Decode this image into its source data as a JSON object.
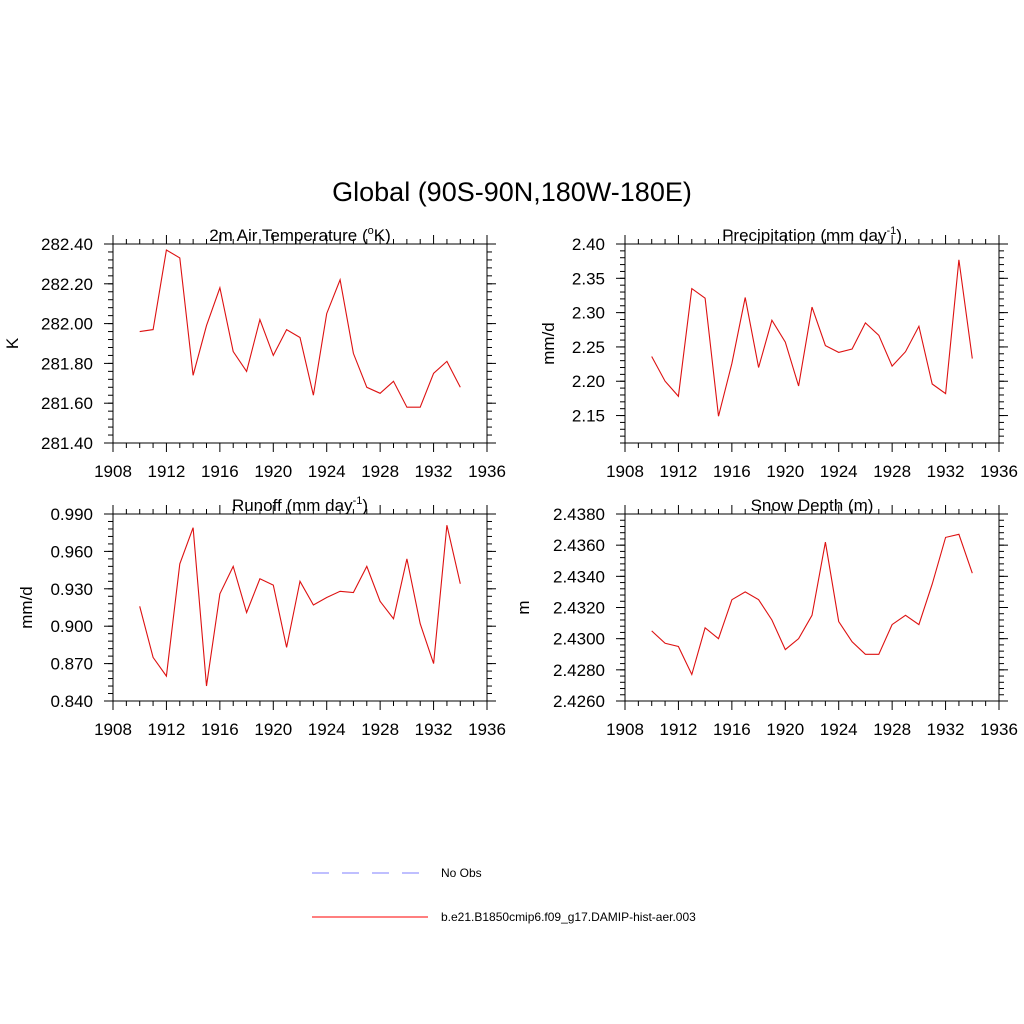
{
  "figure": {
    "title": "Global (90S-90N,180W-180E)"
  },
  "legend": {
    "placement": "bottom-center",
    "items": [
      {
        "label": "No Obs",
        "color": "#9999ff",
        "style": "dashed"
      },
      {
        "label": "b.e21.B1850cmip6.f09_g17.DAMIP-hist-aer.003",
        "color": "#ff3333",
        "style": "solid"
      }
    ]
  },
  "colors": {
    "series": "#dd1111",
    "axis": "#000000"
  },
  "chart_data": [
    {
      "type": "line",
      "title_main": "2m Air Temperature (",
      "title_sup_pre": "o",
      "title_mid": "K)",
      "title_sup_post": "",
      "title_end": "",
      "ylabel": "K",
      "xlim": [
        1908,
        1936
      ],
      "xticks": [
        "1908",
        "1912",
        "1916",
        "1920",
        "1924",
        "1928",
        "1932",
        "1936"
      ],
      "ylim": [
        281.4,
        282.4
      ],
      "yticks": [
        "281.40",
        "281.60",
        "281.80",
        "282.00",
        "282.20",
        "282.40"
      ],
      "ytick_values": [
        281.4,
        281.6,
        281.8,
        282.0,
        282.2,
        282.4
      ],
      "x": [
        1910,
        1911,
        1912,
        1913,
        1914,
        1915,
        1916,
        1917,
        1918,
        1919,
        1920,
        1921,
        1922,
        1923,
        1924,
        1925,
        1926,
        1927,
        1928,
        1929,
        1930,
        1931,
        1932,
        1933,
        1934
      ],
      "series": [
        {
          "values": [
            281.96,
            281.97,
            282.37,
            282.33,
            281.74,
            281.99,
            282.18,
            281.86,
            281.76,
            282.02,
            281.84,
            281.97,
            281.93,
            281.64,
            282.05,
            282.22,
            281.85,
            281.68,
            281.65,
            281.71,
            281.58,
            281.58,
            281.75,
            281.81,
            281.68
          ]
        }
      ]
    },
    {
      "type": "line",
      "title_main": "Precipitation (mm day",
      "title_sup_pre": "",
      "title_mid": "",
      "title_sup_post": "-1",
      "title_end": ")",
      "ylabel": "mm/d",
      "xlim": [
        1908,
        1936
      ],
      "xticks": [
        "1908",
        "1912",
        "1916",
        "1920",
        "1924",
        "1928",
        "1932",
        "1936"
      ],
      "ylim": [
        2.11,
        2.4
      ],
      "yticks": [
        "2.15",
        "2.20",
        "2.25",
        "2.30",
        "2.35",
        "2.40"
      ],
      "ytick_values": [
        2.15,
        2.2,
        2.25,
        2.3,
        2.35,
        2.4
      ],
      "x": [
        1910,
        1911,
        1912,
        1913,
        1914,
        1915,
        1916,
        1917,
        1918,
        1919,
        1920,
        1921,
        1922,
        1923,
        1924,
        1925,
        1926,
        1927,
        1928,
        1929,
        1930,
        1931,
        1932,
        1933,
        1934
      ],
      "series": [
        {
          "values": [
            2.236,
            2.2,
            2.178,
            2.335,
            2.321,
            2.149,
            2.226,
            2.322,
            2.22,
            2.289,
            2.257,
            2.193,
            2.308,
            2.252,
            2.242,
            2.247,
            2.285,
            2.267,
            2.222,
            2.243,
            2.28,
            2.196,
            2.182,
            2.377,
            2.233
          ]
        }
      ]
    },
    {
      "type": "line",
      "title_main": "Runoff (mm day",
      "title_sup_pre": "",
      "title_mid": "",
      "title_sup_post": "-1",
      "title_end": ")",
      "ylabel": "mm/d",
      "xlim": [
        1908,
        1936
      ],
      "xticks": [
        "1908",
        "1912",
        "1916",
        "1920",
        "1924",
        "1928",
        "1932",
        "1936"
      ],
      "ylim": [
        0.84,
        0.99
      ],
      "yticks": [
        "0.840",
        "0.870",
        "0.900",
        "0.930",
        "0.960",
        "0.990"
      ],
      "ytick_values": [
        0.84,
        0.87,
        0.9,
        0.93,
        0.96,
        0.99
      ],
      "x": [
        1910,
        1911,
        1912,
        1913,
        1914,
        1915,
        1916,
        1917,
        1918,
        1919,
        1920,
        1921,
        1922,
        1923,
        1924,
        1925,
        1926,
        1927,
        1928,
        1929,
        1930,
        1931,
        1932,
        1933,
        1934
      ],
      "series": [
        {
          "values": [
            0.916,
            0.875,
            0.86,
            0.95,
            0.979,
            0.852,
            0.926,
            0.948,
            0.911,
            0.938,
            0.933,
            0.883,
            0.936,
            0.917,
            0.923,
            0.928,
            0.927,
            0.948,
            0.92,
            0.906,
            0.954,
            0.902,
            0.87,
            0.981,
            0.934
          ]
        }
      ]
    },
    {
      "type": "line",
      "title_main": "Snow Depth (m)",
      "title_sup_pre": "",
      "title_mid": "",
      "title_sup_post": "",
      "title_end": "",
      "ylabel": "m",
      "xlim": [
        1908,
        1936
      ],
      "xticks": [
        "1908",
        "1912",
        "1916",
        "1920",
        "1924",
        "1928",
        "1932",
        "1936"
      ],
      "ylim": [
        2.426,
        2.438
      ],
      "yticks": [
        "2.4260",
        "2.4280",
        "2.4300",
        "2.4320",
        "2.4340",
        "2.4360",
        "2.4380"
      ],
      "ytick_values": [
        2.426,
        2.428,
        2.43,
        2.432,
        2.434,
        2.436,
        2.438
      ],
      "x": [
        1910,
        1911,
        1912,
        1913,
        1914,
        1915,
        1916,
        1917,
        1918,
        1919,
        1920,
        1921,
        1922,
        1923,
        1924,
        1925,
        1926,
        1927,
        1928,
        1929,
        1930,
        1931,
        1932,
        1933,
        1934
      ],
      "series": [
        {
          "values": [
            2.4305,
            2.4297,
            2.4295,
            2.4277,
            2.4307,
            2.43,
            2.4325,
            2.433,
            2.4325,
            2.4312,
            2.4293,
            2.43,
            2.4315,
            2.4362,
            2.4311,
            2.4298,
            2.429,
            2.429,
            2.4309,
            2.4315,
            2.4309,
            2.4335,
            2.4365,
            2.4367,
            2.4342
          ]
        }
      ]
    }
  ]
}
